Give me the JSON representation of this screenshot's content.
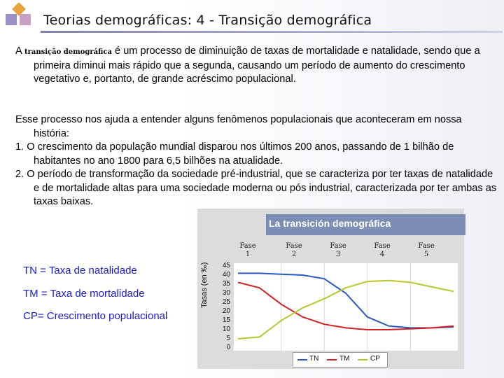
{
  "header": {
    "title": "Teorias demográficas:  4 - Transição demográfica"
  },
  "paragraph1": {
    "lead": "A ",
    "term": "transição demográfica",
    "rest": " é um processo de diminuição de taxas de mortalidade e natalidade, sendo que a primeira diminui mais rápido que a segunda, causando um período de aumento do crescimento vegetativo e, portanto, de grande acréscimo populacional."
  },
  "paragraph2": {
    "intro": "Esse processo nos ajuda a  entender alguns fenômenos populacionais que aconteceram  em nossa história:",
    "item1": "1. O crescimento da população mundial disparou nos últimos 200 anos, passando de 1 bilhão de habitantes no ano 1800 para 6,5 bilhões na atualidade.",
    "item2": "2. O período de transformação da sociedade pré-industrial, que se caracteriza por ter taxas de natalidade e de mortalidade altas para uma sociedade moderna ou pós industrial, caracterizada por ter ambas as taxas baixas."
  },
  "legend": {
    "tn": "TN = Taxa de natalidade",
    "tm": "TM = Taxa de mortalidade",
    "cp": "CP= Crescimento populacional"
  },
  "chart_data": {
    "type": "line",
    "title": "La transición demográfica",
    "ylabel": "Tasas (en ‰)",
    "ylim": [
      0,
      45
    ],
    "yticks": [
      "45",
      "40",
      "35",
      "30",
      "25",
      "20",
      "15",
      "10",
      "5",
      "0"
    ],
    "phases": [
      {
        "label": "Fase",
        "num": "1"
      },
      {
        "label": "Fase",
        "num": "2"
      },
      {
        "label": "Fase",
        "num": "3"
      },
      {
        "label": "Fase",
        "num": "4"
      },
      {
        "label": "Fase",
        "num": "5"
      }
    ],
    "x": [
      0,
      0.5,
      1,
      1.5,
      2,
      2.5,
      3,
      3.5,
      4,
      4.5,
      5
    ],
    "series": [
      {
        "name": "TN",
        "color": "#2b57c8",
        "values": [
          41,
          41,
          40.5,
          40,
          38,
          30,
          17,
          12,
          11,
          11,
          11.5
        ]
      },
      {
        "name": "TM",
        "color": "#d42020",
        "values": [
          36,
          33,
          24,
          17,
          13,
          11,
          10,
          10,
          10.5,
          11,
          12
        ]
      },
      {
        "name": "CP",
        "color": "#b8c82a",
        "values": [
          5,
          6,
          15,
          22,
          27,
          33,
          36.5,
          37,
          36,
          33.5,
          31
        ]
      }
    ],
    "legend_labels": [
      "TN",
      "TM",
      "CP"
    ]
  }
}
